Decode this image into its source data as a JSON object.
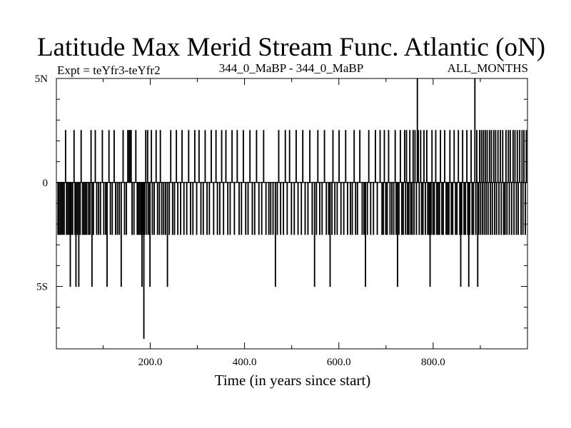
{
  "chart_data": {
    "type": "line",
    "title": "Latitude Max Merid Stream Func. Atlantic (oN)",
    "subtitle_left": "Expt = teYfr3-teYfr2",
    "subtitle_center": "344_0_MaBP - 344_0_MaBP",
    "subtitle_right": "ALL_MONTHS",
    "xlabel": "Time (in years since start)",
    "ylabel": "",
    "xlim": [
      1,
      1000
    ],
    "ylim": [
      -8,
      5.0
    ],
    "x_ticks": [
      200,
      400,
      600,
      800
    ],
    "x_tick_labels": [
      "200.0",
      "400.0",
      "600.0",
      "800.0"
    ],
    "y_ticks": [
      5,
      0,
      -5
    ],
    "y_tick_labels": [
      "5N",
      "0",
      "5S"
    ],
    "grid": false,
    "series": [
      {
        "x_start": 1,
        "x_step": 1,
        "values": [
          0,
          0,
          0,
          -2.5,
          0,
          -2.5,
          0,
          0,
          -2.5,
          0,
          0,
          -2.5,
          0,
          -2.5,
          0,
          0,
          -2.5,
          0,
          0,
          2.5,
          0,
          -2.5,
          0,
          0,
          -2.5,
          0,
          0,
          -2.5,
          0,
          -5,
          0,
          -2.5,
          0,
          0,
          -2.5,
          0,
          0,
          2.5,
          0,
          -2.5,
          0,
          -5,
          0,
          0,
          -2.5,
          0,
          0,
          -5,
          0,
          0,
          -2.5,
          0,
          2.5,
          0,
          0,
          -2.5,
          0,
          0,
          -2.5,
          0,
          0,
          -2.5,
          0,
          0,
          -2.5,
          0,
          0,
          0,
          -2.5,
          0,
          0,
          -2.5,
          0,
          2.5,
          0,
          -5,
          0,
          0,
          -2.5,
          0,
          0,
          0,
          2.5,
          0,
          0,
          -2.5,
          0,
          0,
          0,
          -2.5,
          0,
          0,
          0,
          -2.5,
          0,
          0,
          0,
          2.5,
          0,
          0,
          -2.5,
          0,
          0,
          0,
          -2.5,
          0,
          0,
          -5,
          0,
          0,
          0,
          2.5,
          0,
          0,
          -2.5,
          0,
          0,
          0,
          -2.5,
          0,
          0,
          0,
          2.5,
          0,
          0,
          -2.5,
          0,
          0,
          0,
          -2.5,
          0,
          0,
          0,
          -2.5,
          0,
          0,
          0,
          -5,
          0,
          0,
          0,
          2.5,
          0,
          0,
          -2.5,
          0,
          0,
          0,
          -2.5,
          0,
          0,
          2.5,
          0,
          0,
          2.5,
          0,
          2.5,
          0,
          2.5,
          0,
          -2.5,
          0,
          0,
          0,
          -2.5,
          0,
          0,
          0,
          2.5,
          0,
          0,
          -2.5,
          0,
          -2.5,
          0,
          0,
          -2.5,
          0,
          0,
          -2.5,
          0,
          -5,
          0,
          -2.5,
          0,
          -7.5,
          0,
          -2.5,
          0,
          2.5,
          0,
          -2.5,
          0,
          2.5,
          0,
          -2.5,
          0,
          0,
          -5,
          0,
          0,
          2.5,
          0,
          -2.5,
          0,
          0,
          0,
          -2.5,
          0,
          0,
          0,
          2.5,
          0,
          0,
          -2.5,
          0,
          0,
          0,
          -2.5,
          0,
          2.5,
          0,
          0,
          -2.5,
          0,
          0,
          0,
          -2.5,
          0,
          0,
          0,
          -2.5,
          0,
          0,
          0,
          -5,
          0,
          0,
          0,
          -2.5,
          0,
          0,
          2.5,
          0,
          0,
          0,
          -2.5,
          0,
          0,
          0,
          -2.5,
          0,
          0,
          0,
          2.5,
          0,
          0,
          -2.5,
          0,
          0,
          0,
          0,
          0,
          -2.5,
          0,
          0,
          2.5,
          0,
          0,
          0,
          -2.5,
          0,
          0,
          0,
          0,
          0,
          -2.5,
          0,
          0,
          0,
          2.5,
          0,
          0,
          0,
          -2.5,
          0,
          0,
          0,
          0,
          -2.5,
          0,
          0,
          0,
          2.5,
          0,
          0,
          0,
          -2.5,
          0,
          0,
          0,
          0,
          2.5,
          0,
          0,
          0,
          -2.5,
          0,
          0,
          0,
          0,
          -2.5,
          0,
          0,
          0,
          2.5,
          0,
          0,
          0,
          -2.5,
          0,
          0,
          0,
          0,
          -2.5,
          0,
          0,
          0,
          2.5,
          0,
          0,
          0,
          0,
          -2.5,
          0,
          0,
          0,
          0,
          2.5,
          0,
          0,
          -2.5,
          0,
          0,
          0,
          0,
          -2.5,
          0,
          0,
          0,
          2.5,
          0,
          0,
          0,
          -2.5,
          0,
          0,
          0,
          0,
          2.5,
          0,
          0,
          0,
          -2.5,
          0,
          0,
          0,
          0,
          -2.5,
          0,
          0,
          0,
          2.5,
          0,
          0,
          0,
          0,
          -2.5,
          0,
          0,
          0,
          0,
          0,
          2.5,
          0,
          0,
          0,
          -2.5,
          0,
          0,
          0,
          0,
          -2.5,
          0,
          0,
          0,
          2.5,
          0,
          0,
          0,
          0,
          -2.5,
          0,
          0,
          0,
          0,
          -2.5,
          0,
          0,
          0,
          2.5,
          0,
          0,
          0,
          0,
          -2.5,
          0,
          0,
          0,
          0,
          -2.5,
          0,
          0,
          0,
          2.5,
          0,
          0,
          0,
          0,
          -2.5,
          0,
          0,
          0,
          0,
          0,
          -2.5,
          0,
          0,
          0,
          2.5,
          0,
          0,
          0,
          0,
          -2.5,
          0,
          0,
          0,
          0,
          0,
          -2.5,
          0,
          0,
          0,
          -2.5,
          0,
          0,
          0,
          0,
          -2.5,
          0,
          0,
          0,
          0,
          -5,
          0,
          0,
          0,
          -2.5,
          0,
          0,
          2.5,
          0,
          0,
          0,
          -2.5,
          0,
          0,
          0,
          0,
          0,
          -2.5,
          0,
          0,
          0,
          2.5,
          0,
          0,
          0,
          -2.5,
          0,
          0,
          0,
          0,
          2.5,
          0,
          0,
          0,
          -2.5,
          0,
          0,
          0,
          0,
          0,
          -2.5,
          0,
          0,
          0,
          2.5,
          0,
          0,
          0,
          -2.5,
          0,
          0,
          0,
          0,
          0,
          0,
          -2.5,
          0,
          0,
          2.5,
          0,
          0,
          0,
          0,
          -2.5,
          0,
          0,
          0,
          0,
          0,
          -2.5,
          0,
          0,
          0,
          2.5,
          0,
          0,
          0,
          0,
          -2.5,
          0,
          0,
          0,
          0,
          -5,
          0,
          0,
          0,
          -2.5,
          0,
          0,
          2.5,
          0,
          0,
          0,
          -2.5,
          0,
          0,
          0,
          0,
          -2.5,
          0,
          0,
          0,
          0,
          2.5,
          0,
          0,
          0,
          -2.5,
          0,
          0,
          0,
          0,
          -2.5,
          0,
          0,
          -5,
          0,
          0,
          0,
          -2.5,
          0,
          2.5,
          0,
          0,
          0,
          -2.5,
          0,
          0,
          0,
          0,
          -2.5,
          0,
          0,
          0,
          2.5,
          0,
          0,
          0,
          -2.5,
          0,
          0,
          0,
          0,
          0,
          -2.5,
          0,
          0,
          0,
          2.5,
          0,
          0,
          0,
          -2.5,
          0,
          0,
          0,
          0,
          0,
          -2.5,
          0,
          0,
          0,
          -2.5,
          0,
          0,
          0,
          2.5,
          0,
          0,
          -2.5,
          0,
          0,
          0,
          -2.5,
          0,
          0,
          0,
          0,
          2.5,
          0,
          0,
          0,
          0,
          -2.5,
          0,
          0,
          0,
          -2.5,
          0,
          0,
          -5,
          0,
          0,
          0,
          -2.5,
          0,
          0,
          2.5,
          0,
          0,
          0,
          -2.5,
          0,
          0,
          0,
          0,
          0,
          -2.5,
          0,
          0,
          0,
          2.5,
          0,
          0,
          0,
          -2.5,
          0,
          0,
          0,
          0,
          0,
          2.5,
          0,
          0,
          0,
          -2.5,
          0,
          0,
          -2.5,
          0,
          2.5,
          0,
          0,
          -2.5,
          0,
          0,
          -2.5,
          0,
          0,
          2.5,
          0,
          0,
          -2.5,
          0,
          0,
          0,
          -2.5,
          0,
          0,
          0,
          -2.5,
          0,
          0,
          2.5,
          0,
          -2.5,
          0,
          0,
          -5,
          0,
          0,
          -2.5,
          0,
          0,
          2.5,
          0,
          0,
          -2.5,
          0,
          0,
          -2.5,
          0,
          0,
          2.5,
          0,
          -2.5,
          0,
          2.5,
          0,
          -2.5,
          0,
          0,
          -2.5,
          0,
          2.5,
          0,
          -2.5,
          0,
          0,
          -2.5,
          0,
          2.5,
          0,
          -2.5,
          0,
          2.5,
          0,
          0,
          -2.5,
          0,
          5,
          0,
          2.5,
          0,
          -2.5,
          0,
          0,
          2.5,
          0,
          -2.5,
          0,
          0,
          -2.5,
          0,
          2.5,
          0,
          0,
          -2.5,
          0,
          0,
          2.5,
          0,
          -2.5,
          0,
          0,
          -2.5,
          0,
          -5,
          0,
          -2.5,
          0,
          2.5,
          0,
          -2.5,
          0,
          0,
          -2.5,
          0,
          0,
          2.5,
          0,
          -2.5,
          0,
          0,
          -2.5,
          0,
          0,
          -2.5,
          0,
          2.5,
          0,
          0,
          -2.5,
          0,
          0,
          -2.5,
          0,
          0,
          2.5,
          0,
          0,
          -2.5,
          0,
          0,
          -2.5,
          0,
          0,
          -2.5,
          0,
          2.5,
          0,
          0,
          -2.5,
          0,
          0,
          -2.5,
          0,
          0,
          2.5,
          0,
          0,
          -2.5,
          0,
          0,
          -2.5,
          0,
          0,
          2.5,
          0,
          0,
          -2.5,
          0,
          -5,
          0,
          -2.5,
          0,
          2.5,
          0,
          0,
          -2.5,
          0,
          0,
          -2.5,
          0,
          0,
          2.5,
          0,
          -2.5,
          0,
          -5,
          0,
          -2.5,
          0,
          0,
          2.5,
          0,
          -2.5,
          0,
          0,
          -2.5,
          0,
          0,
          5,
          0,
          -2.5,
          0,
          2.5,
          0,
          -5,
          0,
          -2.5,
          0,
          2.5,
          0,
          -2.5,
          0,
          2.5,
          0,
          -2.5,
          0,
          2.5,
          0,
          -2.5,
          0,
          2.5,
          0,
          -2.5,
          0,
          2.5,
          0,
          -2.5,
          0,
          0,
          2.5,
          0,
          -2.5,
          0,
          2.5,
          0,
          -2.5,
          0,
          0,
          2.5,
          0,
          -2.5,
          0,
          2.5,
          0,
          -2.5,
          0,
          0,
          2.5,
          0,
          -2.5,
          0,
          0,
          2.5,
          0,
          -2.5,
          0,
          0,
          2.5,
          0,
          -2.5,
          0,
          0,
          -2.5,
          0,
          2.5,
          0,
          -2.5,
          0,
          0,
          2.5,
          0,
          -2.5,
          0,
          2.5,
          0,
          0,
          -2.5,
          0,
          0,
          2.5,
          0,
          -2.5,
          0,
          2.5,
          0,
          0,
          -2.5,
          0,
          2.5,
          0,
          -2.5,
          0,
          0,
          2.5,
          0,
          0,
          -2.5,
          0,
          2.5,
          0,
          -2.5,
          0,
          2.5,
          0,
          0,
          -2.5,
          0,
          2.5,
          0,
          0
        ]
      }
    ]
  }
}
